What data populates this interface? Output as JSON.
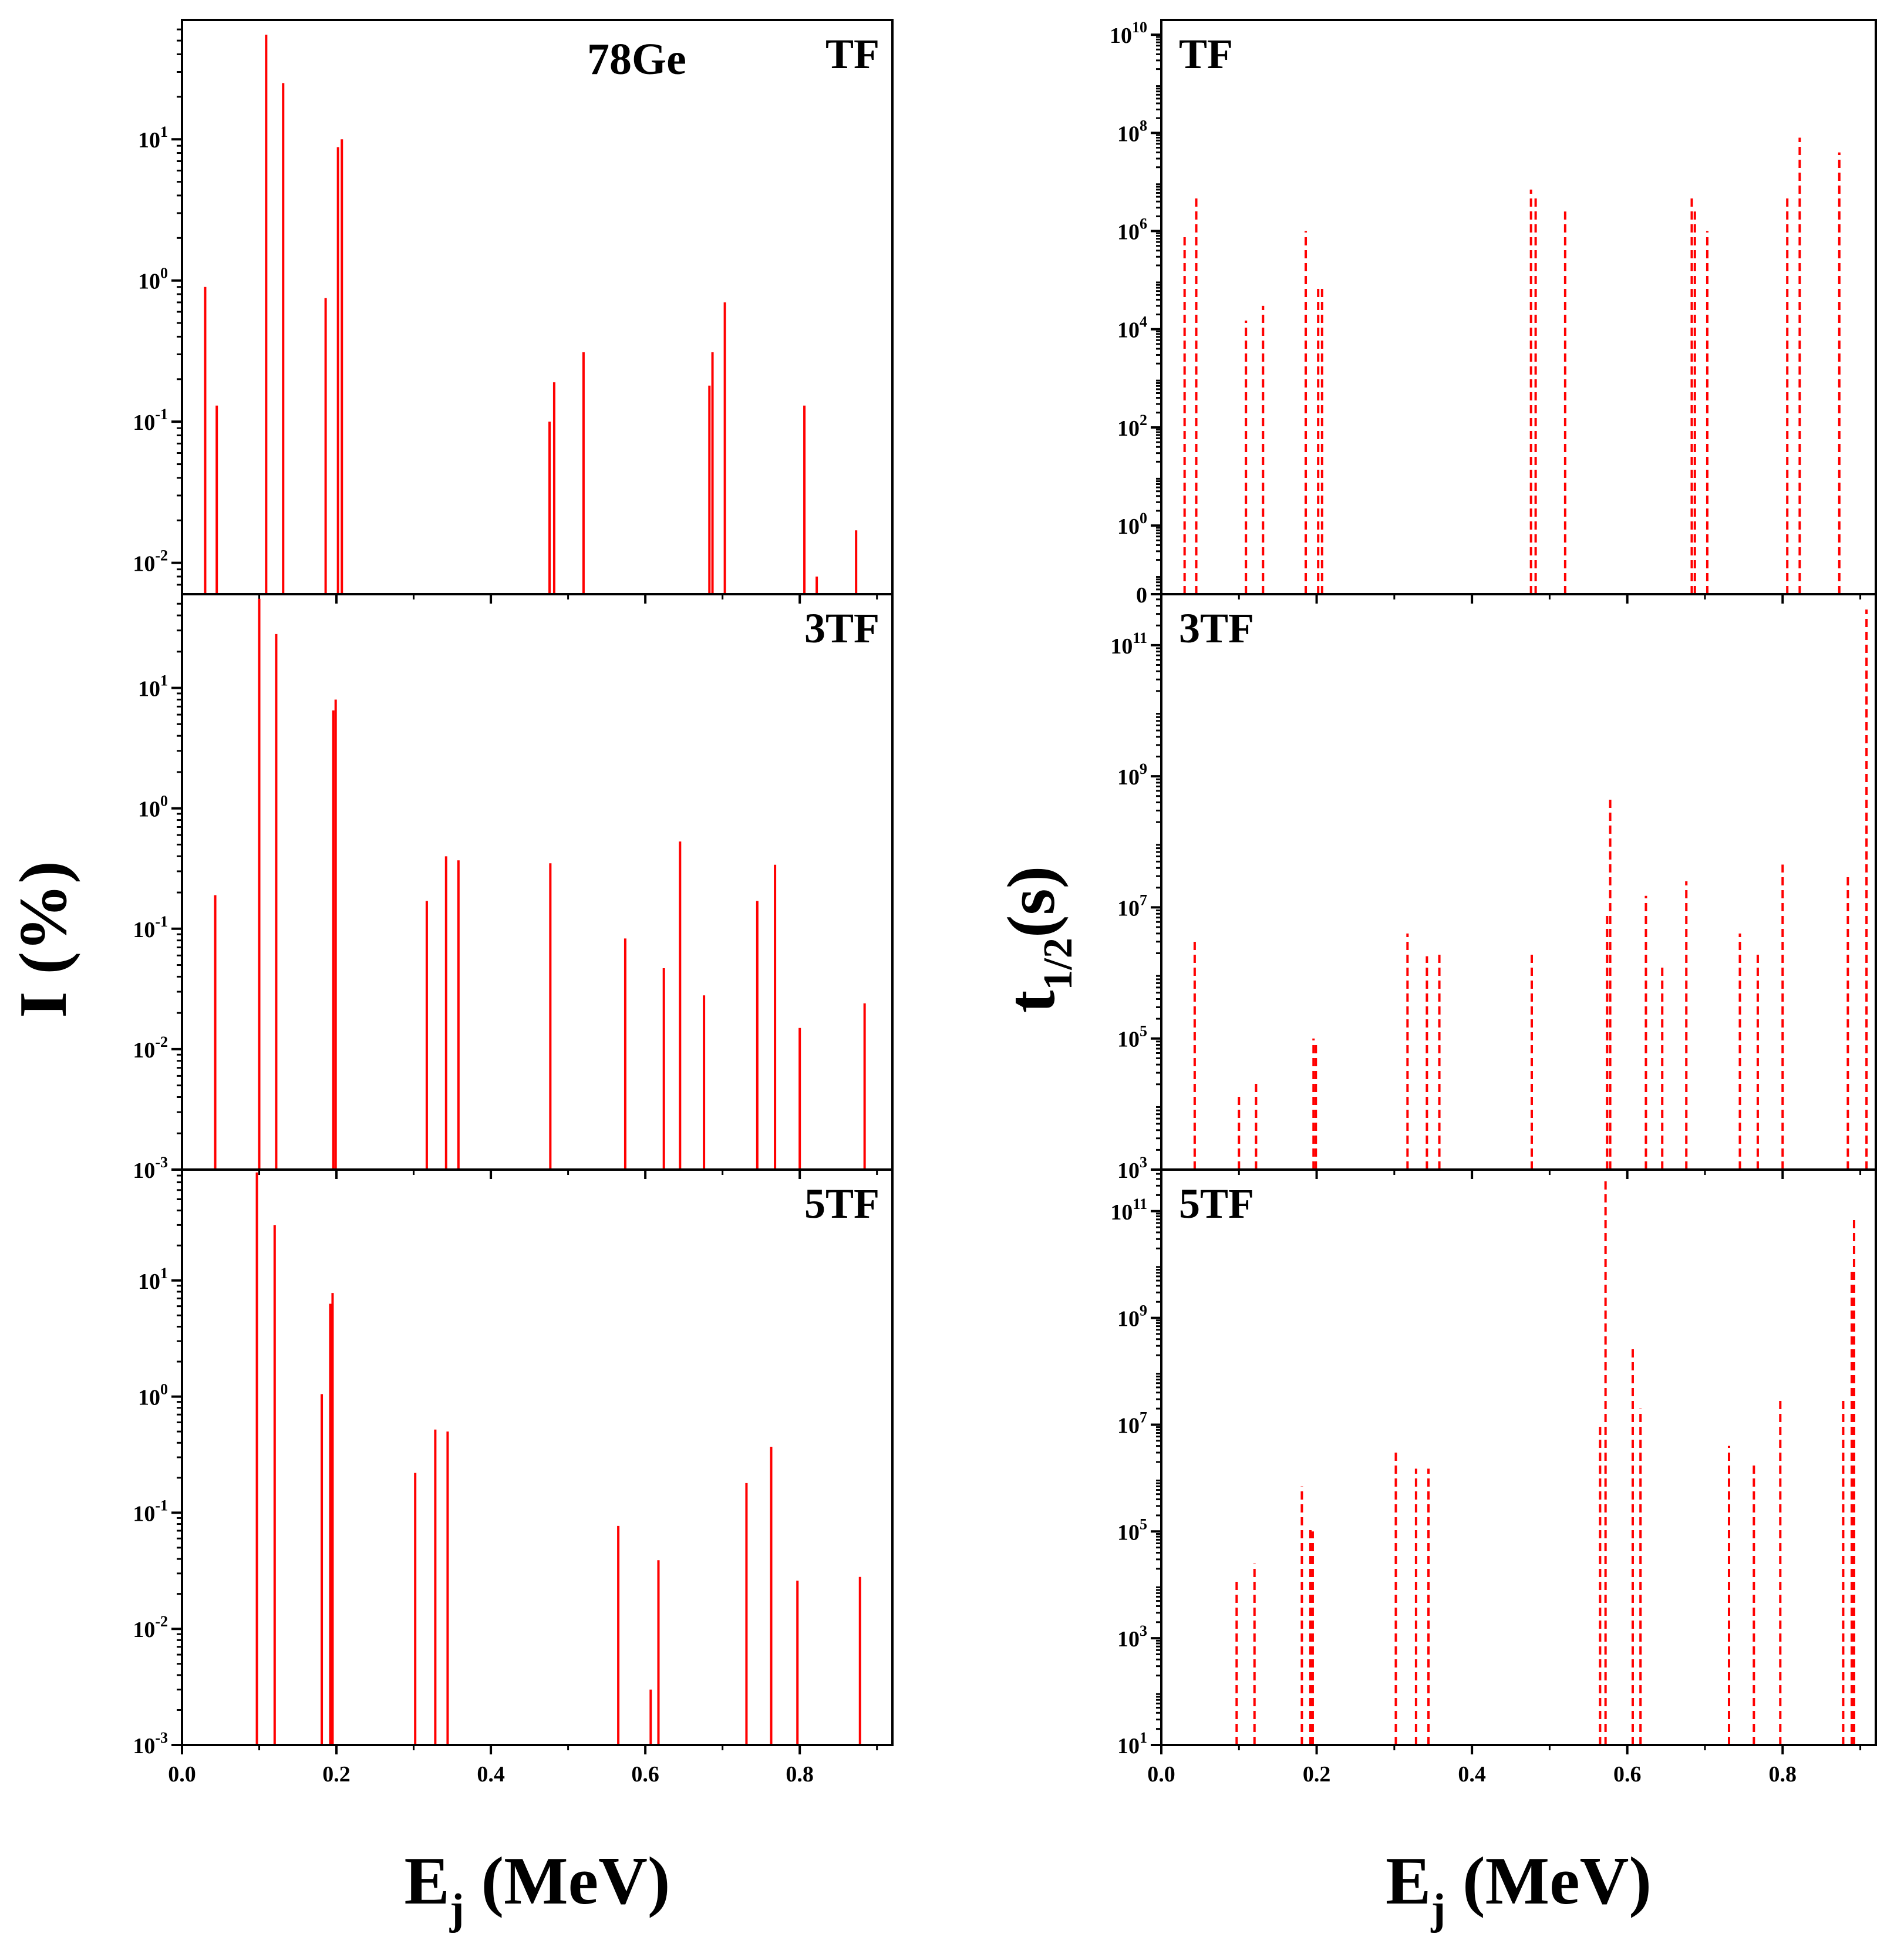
{
  "chart_data": [
    {
      "type": "bar",
      "id": "I_TF",
      "scale": "log",
      "style": "solid",
      "title": "TF",
      "annotation": "78Ge",
      "xlabel": "E",
      "xlabel_sub": "j",
      "xlabel_unit": " (MeV)",
      "ylabel": "I (%)",
      "xlim": [
        0,
        0.92
      ],
      "ylim": [
        0.006,
        70
      ],
      "yticks": [
        {
          "base": "10",
          "exp": "1",
          "value": 10
        },
        {
          "base": "10",
          "exp": "0",
          "value": 1
        },
        {
          "base": "10",
          "exp": "-1",
          "value": 0.1
        },
        {
          "base": "10",
          "exp": "-2",
          "value": 0.01
        }
      ],
      "xticks": [],
      "series": [
        {
          "name": "I",
          "color": "#ff0000",
          "x": [
            0.03,
            0.045,
            0.109,
            0.131,
            0.186,
            0.202,
            0.207,
            0.476,
            0.482,
            0.52,
            0.683,
            0.687,
            0.703,
            0.806,
            0.822,
            0.873
          ],
          "values": [
            0.9,
            0.13,
            55,
            25,
            0.75,
            8.8,
            10,
            0.1,
            0.19,
            0.31,
            0.18,
            0.31,
            0.7,
            0.13,
            0.008,
            0.017
          ]
        }
      ]
    },
    {
      "type": "bar",
      "id": "I_3TF",
      "scale": "log",
      "style": "solid",
      "title": "3TF",
      "xlim": [
        0,
        0.92
      ],
      "ylim": [
        0.001,
        60
      ],
      "yticks": [
        {
          "base": "10",
          "exp": "1",
          "value": 10
        },
        {
          "base": "10",
          "exp": "0",
          "value": 1
        },
        {
          "base": "10",
          "exp": "-1",
          "value": 0.1
        },
        {
          "base": "10",
          "exp": "-2",
          "value": 0.01
        },
        {
          "base": "10",
          "exp": "-3",
          "value": 0.001
        }
      ],
      "xticks": [],
      "series": [
        {
          "name": "I",
          "color": "#ff0000",
          "x": [
            0.043,
            0.1,
            0.122,
            0.196,
            0.199,
            0.317,
            0.342,
            0.358,
            0.477,
            0.574,
            0.624,
            0.645,
            0.676,
            0.745,
            0.768,
            0.8,
            0.884
          ],
          "values": [
            0.19,
            55,
            28,
            6.5,
            8,
            0.17,
            0.4,
            0.37,
            0.35,
            0.083,
            0.047,
            0.53,
            0.028,
            0.17,
            0.34,
            0.015,
            0.024
          ]
        }
      ]
    },
    {
      "type": "bar",
      "id": "I_5TF",
      "scale": "log",
      "style": "solid",
      "title": "5TF",
      "xlim": [
        0,
        0.92
      ],
      "ylim": [
        0.001,
        90
      ],
      "yticks": [
        {
          "base": "10",
          "exp": "1",
          "value": 10
        },
        {
          "base": "10",
          "exp": "0",
          "value": 1
        },
        {
          "base": "10",
          "exp": "-1",
          "value": 0.1
        },
        {
          "base": "10",
          "exp": "-2",
          "value": 0.01
        },
        {
          "base": "10",
          "exp": "-3",
          "value": 0.001
        }
      ],
      "xticks": [
        "0.0",
        "0.2",
        "0.4",
        "0.6",
        "0.8"
      ],
      "series": [
        {
          "name": "I",
          "color": "#ff0000",
          "x": [
            0.097,
            0.12,
            0.181,
            0.192,
            0.195,
            0.302,
            0.328,
            0.344,
            0.565,
            0.607,
            0.617,
            0.731,
            0.763,
            0.797,
            0.878
          ],
          "values": [
            85,
            30,
            1.05,
            6.3,
            7.8,
            0.22,
            0.52,
            0.5,
            0.077,
            0.003,
            0.039,
            0.18,
            0.37,
            0.026,
            0.028
          ]
        }
      ]
    },
    {
      "type": "bar",
      "id": "T_TF",
      "scale": "log",
      "style": "dashed",
      "title": "TF",
      "xlabel": "E",
      "xlabel_sub": "j",
      "xlabel_unit": " (MeV)",
      "ylabel": "t",
      "ylabel_sub": "1/2",
      "ylabel_unit": "(s)",
      "xlim": [
        0,
        0.92
      ],
      "ylim": [
        0.04,
        20000000000
      ],
      "yticks": [
        {
          "base": "10",
          "exp": "10",
          "value": 10000000000
        },
        {
          "base": "10",
          "exp": "8",
          "value": 100000000
        },
        {
          "base": "10",
          "exp": "6",
          "value": 1000000
        },
        {
          "base": "10",
          "exp": "4",
          "value": 10000
        },
        {
          "base": "10",
          "exp": "2",
          "value": 100
        },
        {
          "base": "10",
          "exp": "0",
          "value": 1
        },
        {
          "base": "0",
          "exp": "",
          "value": 0.04
        }
      ],
      "xticks": [],
      "series": [
        {
          "name": "t1/2",
          "color": "#ff0000",
          "x": [
            0.03,
            0.045,
            0.109,
            0.131,
            0.186,
            0.202,
            0.207,
            0.476,
            0.482,
            0.52,
            0.683,
            0.687,
            0.703,
            0.806,
            0.822,
            0.873
          ],
          "values": [
            800000,
            5000000,
            15000,
            30000,
            1000000,
            80000,
            70000,
            7000000,
            5000000,
            2500000,
            5000000,
            2500000,
            1000000,
            5000000,
            80000000,
            40000000
          ]
        }
      ]
    },
    {
      "type": "bar",
      "id": "T_3TF",
      "scale": "log",
      "style": "dashed",
      "title": "3TF",
      "xlim": [
        0,
        0.92
      ],
      "ylim": [
        1000,
        600000000000
      ],
      "yticks": [
        {
          "base": "10",
          "exp": "11",
          "value": 100000000000
        },
        {
          "base": "10",
          "exp": "9",
          "value": 1000000000
        },
        {
          "base": "10",
          "exp": "7",
          "value": 10000000
        },
        {
          "base": "10",
          "exp": "5",
          "value": 100000
        },
        {
          "base": "10",
          "exp": "3",
          "value": 1000
        }
      ],
      "xticks": [],
      "series": [
        {
          "name": "t1/2",
          "color": "#ff0000",
          "x": [
            0.043,
            0.1,
            0.122,
            0.196,
            0.199,
            0.317,
            0.342,
            0.358,
            0.477,
            0.574,
            0.578,
            0.624,
            0.645,
            0.676,
            0.745,
            0.768,
            0.8,
            0.884,
            0.908
          ],
          "values": [
            3500000,
            13000,
            22000,
            100000,
            80000,
            4000000,
            1800000,
            1900000,
            2000000,
            8000000,
            450000000,
            15000000,
            1400000,
            25000000,
            4000000,
            2000000,
            45000000,
            30000000,
            350000000000
          ]
        }
      ]
    },
    {
      "type": "bar",
      "id": "T_5TF",
      "scale": "log",
      "style": "dashed",
      "title": "5TF",
      "xlim": [
        0,
        0.92
      ],
      "ylim": [
        10,
        600000000000
      ],
      "yticks": [
        {
          "base": "10",
          "exp": "11",
          "value": 100000000000
        },
        {
          "base": "10",
          "exp": "9",
          "value": 1000000000
        },
        {
          "base": "10",
          "exp": "7",
          "value": 10000000
        },
        {
          "base": "10",
          "exp": "5",
          "value": 100000
        },
        {
          "base": "10",
          "exp": "3",
          "value": 1000
        },
        {
          "base": "10",
          "exp": "1",
          "value": 10
        }
      ],
      "xticks": [
        "0.0",
        "0.2",
        "0.4",
        "0.6",
        "0.8"
      ],
      "series": [
        {
          "name": "t1/2",
          "color": "#ff0000",
          "x": [
            0.097,
            0.12,
            0.181,
            0.192,
            0.195,
            0.302,
            0.328,
            0.344,
            0.565,
            0.572,
            0.607,
            0.617,
            0.731,
            0.763,
            0.797,
            0.878,
            0.889,
            0.892
          ],
          "values": [
            12000,
            25000,
            700000,
            120000,
            100000,
            3500000,
            1500000,
            1500000,
            10000000,
            400000000000,
            300000000,
            20000000,
            4000000,
            2000000,
            30000000,
            30000000,
            8000000000,
            70000000000
          ]
        }
      ]
    }
  ]
}
